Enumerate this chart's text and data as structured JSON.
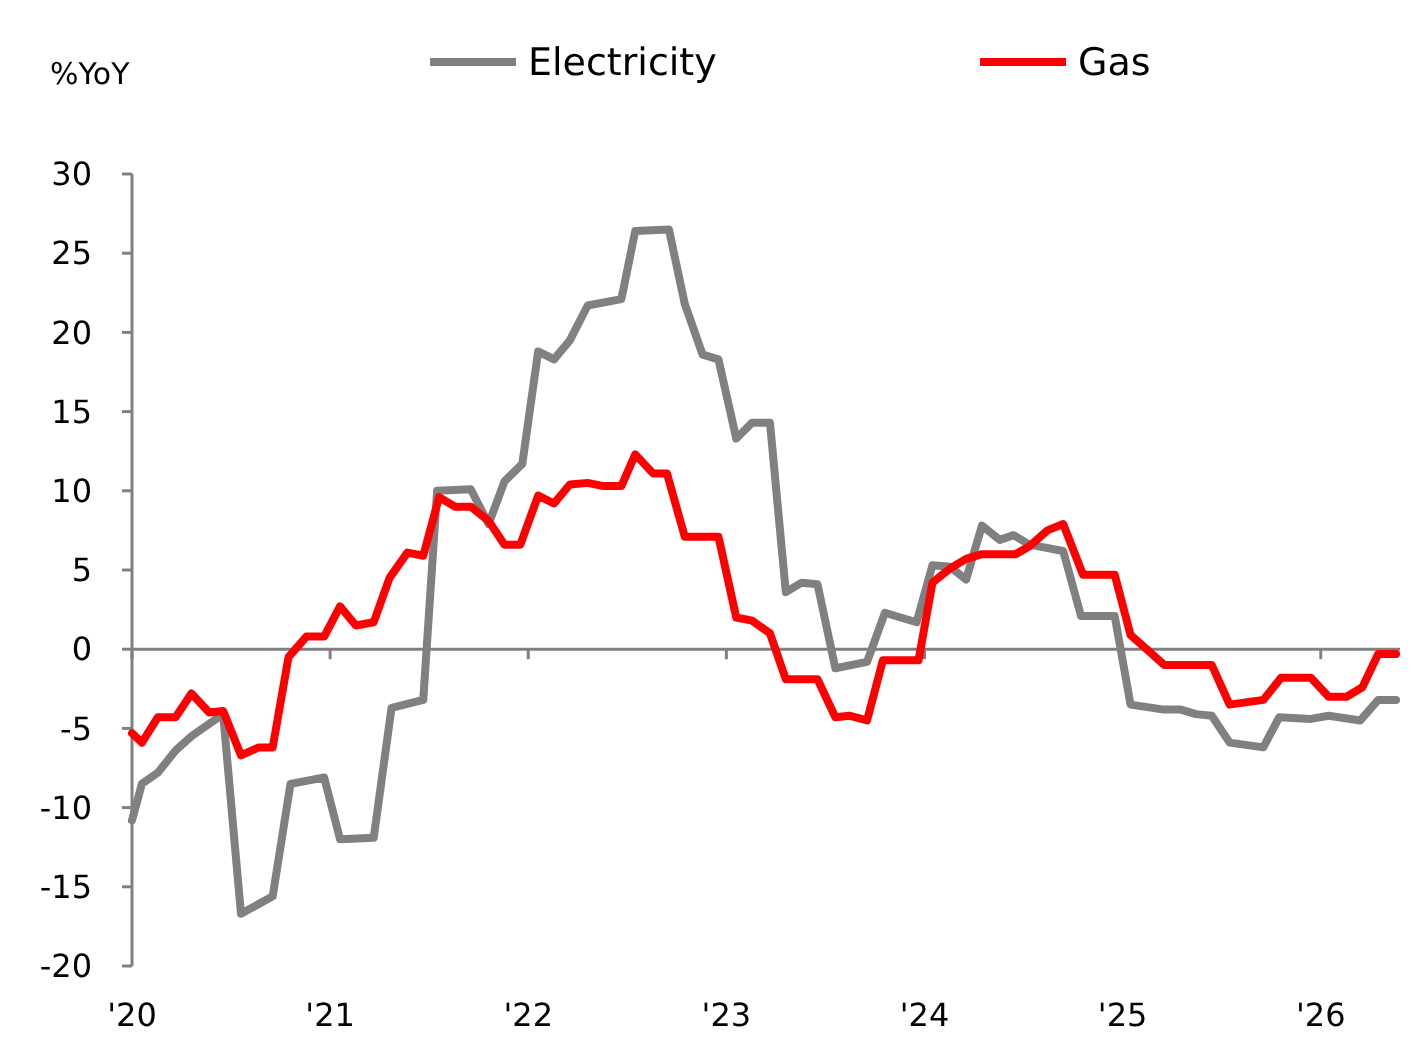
{
  "chart_data": {
    "type": "line",
    "ylabel": "%YoY",
    "xlim": [
      2020,
      2026.4
    ],
    "xticks": [
      {
        "value": 2020,
        "label": "'20"
      },
      {
        "value": 2021,
        "label": "'21"
      },
      {
        "value": 2022,
        "label": "'22"
      },
      {
        "value": 2023,
        "label": "'23"
      },
      {
        "value": 2024,
        "label": "'24"
      },
      {
        "value": 2025,
        "label": "'25"
      },
      {
        "value": 2026,
        "label": "'26"
      }
    ],
    "ylim": [
      -20,
      30
    ],
    "yticks": [
      -20,
      -15,
      -10,
      -5,
      0,
      5,
      10,
      15,
      20,
      25,
      30
    ],
    "legend": "top",
    "line_style": "solid",
    "marker": "none",
    "series": [
      {
        "name": "Electricity",
        "color": "#808080",
        "x": [
          2020.0,
          2020.05,
          2020.13,
          2020.22,
          2020.3,
          2020.39,
          2020.46,
          2020.55,
          2020.71,
          2020.8,
          2020.97,
          2021.05,
          2021.22,
          2021.31,
          2021.47,
          2021.54,
          2021.71,
          2021.8,
          2021.88,
          2021.97,
          2022.05,
          2022.13,
          2022.21,
          2022.3,
          2022.47,
          2022.54,
          2022.71,
          2022.79,
          2022.88,
          2022.96,
          2023.05,
          2023.13,
          2023.22,
          2023.3,
          2023.38,
          2023.46,
          2023.55,
          2023.71,
          2023.8,
          2023.96,
          2024.04,
          2024.13,
          2024.21,
          2024.29,
          2024.38,
          2024.45,
          2024.53,
          2024.7,
          2024.79,
          2024.96,
          2025.04,
          2025.2,
          2025.29,
          2025.37,
          2025.45,
          2025.54,
          2025.71,
          2025.79,
          2025.95,
          2026.04,
          2026.2,
          2026.29,
          2026.38
        ],
        "values": [
          -10.8,
          -8.5,
          -7.8,
          -6.4,
          -5.5,
          -4.7,
          -4.1,
          -16.7,
          -15.6,
          -8.5,
          -8.1,
          -12.0,
          -11.9,
          -3.7,
          -3.2,
          10.0,
          10.1,
          7.9,
          10.6,
          11.7,
          18.8,
          18.3,
          19.5,
          21.7,
          22.1,
          26.4,
          26.5,
          21.8,
          18.6,
          18.3,
          13.3,
          14.3,
          14.3,
          3.6,
          4.2,
          4.1,
          -1.2,
          -0.8,
          2.3,
          1.7,
          5.3,
          5.2,
          4.4,
          7.8,
          6.9,
          7.2,
          6.6,
          6.2,
          2.1,
          2.1,
          -3.5,
          -3.8,
          -3.8,
          -4.1,
          -4.2,
          -5.9,
          -6.2,
          -4.3,
          -4.4,
          -4.2,
          -4.5,
          -3.2,
          -3.2
        ]
      },
      {
        "name": "Gas",
        "color": "#ff0000",
        "x": [
          2020.0,
          2020.05,
          2020.13,
          2020.22,
          2020.3,
          2020.39,
          2020.46,
          2020.55,
          2020.64,
          2020.71,
          2020.79,
          2020.88,
          2020.97,
          2021.05,
          2021.13,
          2021.22,
          2021.3,
          2021.39,
          2021.47,
          2021.55,
          2021.63,
          2021.71,
          2021.8,
          2021.88,
          2021.96,
          2022.05,
          2022.13,
          2022.21,
          2022.3,
          2022.38,
          2022.47,
          2022.54,
          2022.63,
          2022.7,
          2022.79,
          2022.96,
          2023.05,
          2023.13,
          2023.22,
          2023.3,
          2023.46,
          2023.55,
          2023.62,
          2023.71,
          2023.79,
          2023.97,
          2024.04,
          2024.13,
          2024.21,
          2024.29,
          2024.46,
          2024.53,
          2024.62,
          2024.7,
          2024.8,
          2024.96,
          2025.04,
          2025.13,
          2025.21,
          2025.45,
          2025.54,
          2025.71,
          2025.8,
          2025.95,
          2026.04,
          2026.13,
          2026.21,
          2026.29,
          2026.38
        ],
        "values": [
          -5.3,
          -5.9,
          -4.3,
          -4.3,
          -2.8,
          -4.0,
          -3.9,
          -6.7,
          -6.2,
          -6.2,
          -0.5,
          0.8,
          0.8,
          2.7,
          1.5,
          1.7,
          4.5,
          6.1,
          5.9,
          9.6,
          9.0,
          9.0,
          8.1,
          6.6,
          6.6,
          9.7,
          9.2,
          10.4,
          10.5,
          10.3,
          10.3,
          12.3,
          11.1,
          11.1,
          7.1,
          7.1,
          2.0,
          1.8,
          1.0,
          -1.9,
          -1.9,
          -4.3,
          -4.2,
          -4.5,
          -0.7,
          -0.7,
          4.2,
          5.1,
          5.7,
          6.0,
          6.0,
          6.5,
          7.5,
          7.9,
          4.7,
          4.7,
          0.9,
          -0.1,
          -1.0,
          -1.0,
          -3.5,
          -3.2,
          -1.8,
          -1.8,
          -3.0,
          -3.0,
          -2.4,
          -0.3,
          -0.3
        ]
      }
    ]
  }
}
